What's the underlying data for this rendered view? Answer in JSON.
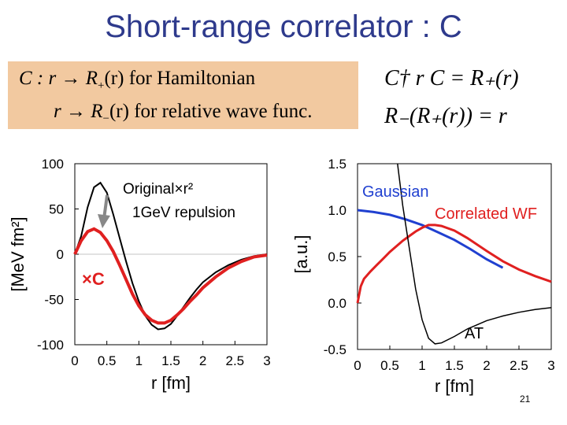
{
  "slide": {
    "title": "Short-range correlator : C",
    "page_number": "21"
  },
  "definitions": {
    "line1_prefix": "C :  r → R",
    "line1_sub": "+",
    "line1_suffix": "(r)  for Hamiltonian",
    "line2_prefix": "r → R",
    "line2_sub": "−",
    "line2_suffix": "(r)  for relative wave func."
  },
  "equations": {
    "eq1": "C† r  C = R₊(r)",
    "eq2": "R₋(R₊(r)) = r"
  },
  "colors": {
    "title": "#2e3a8c",
    "box": "#f2c9a0",
    "red": "#e02020",
    "blue": "#2040d0",
    "arrow": "#888888"
  },
  "chart_data": [
    {
      "type": "line",
      "xlabel": "r [fm]",
      "ylabel": "[MeV fm²]",
      "xlim": [
        0,
        3
      ],
      "ylim": [
        -100,
        100
      ],
      "xticks": [
        "0",
        "0.5",
        "1",
        "1.5",
        "2",
        "2.5",
        "3"
      ],
      "yticks": [
        "100",
        "50",
        "0",
        "-50",
        "-100"
      ],
      "annotations": [
        "Original×r²",
        "1GeV repulsion",
        "×C"
      ],
      "series": [
        {
          "name": "Original×r²",
          "color": "black",
          "x": [
            0,
            0.1,
            0.2,
            0.3,
            0.4,
            0.5,
            0.6,
            0.7,
            0.8,
            0.9,
            1.0,
            1.1,
            1.2,
            1.3,
            1.4,
            1.5,
            1.6,
            1.7,
            1.8,
            1.9,
            2.0,
            2.2,
            2.4,
            2.6,
            2.8,
            3.0
          ],
          "y": [
            0,
            20,
            52,
            74,
            79,
            68,
            44,
            18,
            -8,
            -32,
            -52,
            -68,
            -78,
            -83,
            -82,
            -77,
            -68,
            -58,
            -48,
            -39,
            -31,
            -20,
            -12,
            -6,
            -2,
            0
          ]
        },
        {
          "name": "×C",
          "color": "red",
          "x": [
            0,
            0.1,
            0.2,
            0.3,
            0.4,
            0.5,
            0.6,
            0.7,
            0.8,
            0.9,
            1.0,
            1.1,
            1.2,
            1.3,
            1.4,
            1.5,
            1.6,
            1.7,
            1.8,
            1.9,
            2.0,
            2.2,
            2.4,
            2.6,
            2.8,
            3.0
          ],
          "y": [
            0,
            15,
            25,
            28,
            24,
            15,
            3,
            -12,
            -28,
            -44,
            -57,
            -67,
            -73,
            -76,
            -76,
            -73,
            -67,
            -60,
            -52,
            -45,
            -37,
            -25,
            -15,
            -8,
            -3,
            -1
          ]
        }
      ]
    },
    {
      "type": "line",
      "xlabel": "r [fm]",
      "ylabel": "[a.u.]",
      "xlim": [
        0,
        3
      ],
      "ylim": [
        -0.5,
        1.5
      ],
      "xticks": [
        "0",
        "0.5",
        "1",
        "1.5",
        "2",
        "2.5",
        "3"
      ],
      "yticks": [
        "1.5",
        "1.0",
        "0.5",
        "0.0",
        "-0.5"
      ],
      "annotations": [
        "AT"
      ],
      "series": [
        {
          "name": "Gaussian",
          "color": "blue",
          "x": [
            0,
            0.25,
            0.5,
            0.75,
            1.0,
            1.25,
            1.5,
            1.75,
            2.0,
            2.25
          ],
          "y": [
            1.0,
            0.98,
            0.95,
            0.9,
            0.84,
            0.76,
            0.68,
            0.58,
            0.47,
            0.38
          ]
        },
        {
          "name": "Correlated WF",
          "color": "red",
          "x": [
            0,
            0.05,
            0.1,
            0.2,
            0.3,
            0.4,
            0.5,
            0.6,
            0.7,
            0.8,
            0.9,
            1.0,
            1.1,
            1.2,
            1.3,
            1.5,
            1.7,
            2.0,
            2.25,
            2.5,
            2.75,
            3.0
          ],
          "y": [
            0.0,
            0.18,
            0.26,
            0.34,
            0.41,
            0.48,
            0.55,
            0.61,
            0.67,
            0.72,
            0.77,
            0.81,
            0.84,
            0.84,
            0.83,
            0.78,
            0.7,
            0.56,
            0.45,
            0.36,
            0.29,
            0.23
          ]
        },
        {
          "name": "AT",
          "color": "black",
          "x": [
            0.62,
            0.7,
            0.8,
            0.9,
            1.0,
            1.1,
            1.2,
            1.3,
            1.5,
            1.7,
            2.0,
            2.25,
            2.5,
            2.75,
            3.0
          ],
          "y": [
            1.5,
            1.05,
            0.6,
            0.15,
            -0.18,
            -0.38,
            -0.44,
            -0.43,
            -0.36,
            -0.28,
            -0.19,
            -0.14,
            -0.1,
            -0.07,
            -0.05
          ]
        }
      ]
    }
  ]
}
